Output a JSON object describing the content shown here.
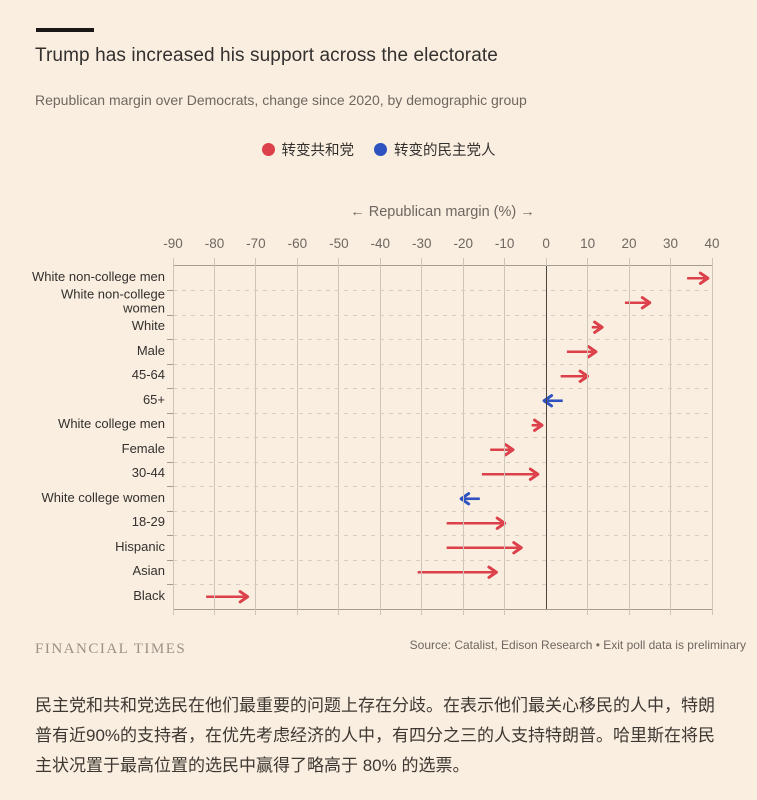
{
  "header": {
    "title": "Trump has increased his support across the electorate",
    "subtitle": "Republican margin over Democrats, change since 2020, by demographic group"
  },
  "legend": {
    "items": [
      {
        "label": "转变共和党",
        "color": "#dc404a",
        "party": "republican"
      },
      {
        "label": "转变的民主党人",
        "color": "#2e53c1",
        "party": "democrat"
      }
    ]
  },
  "chart_data": {
    "type": "arrow",
    "axis_title": "← Republican margin (%) →",
    "xlabel": "Republican margin (%)",
    "xlim": [
      -90,
      40
    ],
    "xticks": [
      -90,
      -80,
      -70,
      -60,
      -50,
      -40,
      -30,
      -20,
      -10,
      0,
      10,
      20,
      30,
      40
    ],
    "grid": true,
    "colors": {
      "republican": "#dc404a",
      "democrat": "#2e53c1",
      "background": "#faeee0"
    },
    "rows": [
      {
        "label": "White non-college men",
        "start": 34,
        "end": 39,
        "party": "republican"
      },
      {
        "label": [
          "White non-college",
          "women"
        ],
        "start": 19,
        "end": 25,
        "party": "republican"
      },
      {
        "label": "White",
        "start": 11,
        "end": 13.5,
        "party": "republican"
      },
      {
        "label": "Male",
        "start": 5,
        "end": 12,
        "party": "republican"
      },
      {
        "label": "45-64",
        "start": 3.5,
        "end": 10,
        "party": "republican"
      },
      {
        "label": "65+",
        "start": 4,
        "end": -0.5,
        "party": "democrat"
      },
      {
        "label": "White college men",
        "start": -3.5,
        "end": -1,
        "party": "republican"
      },
      {
        "label": "Female",
        "start": -13.5,
        "end": -8,
        "party": "republican"
      },
      {
        "label": "30-44",
        "start": -15.5,
        "end": -2,
        "party": "republican"
      },
      {
        "label": "White college women",
        "start": -16,
        "end": -20.5,
        "party": "democrat"
      },
      {
        "label": "18-29",
        "start": -24,
        "end": -10,
        "party": "republican"
      },
      {
        "label": "Hispanic",
        "start": -24,
        "end": -6,
        "party": "republican"
      },
      {
        "label": "Asian",
        "start": -31,
        "end": -12,
        "party": "republican"
      },
      {
        "label": "Black",
        "start": -82,
        "end": -72,
        "party": "republican"
      }
    ]
  },
  "footer": {
    "brand": "FINANCIAL TIMES",
    "source": "Source: Catalist, Edison Research • Exit poll data is preliminary"
  },
  "caption": {
    "text": "民主党和共和党选民在他们最重要的问题上存在分歧。在表示他们最关心移民的人中，特朗普有近90%的支持者，在优先考虑经济的人中，有四分之三的人支持特朗普。哈里斯在将民主状况置于最高位置的选民中赢得了略高于 80% 的选票。"
  }
}
